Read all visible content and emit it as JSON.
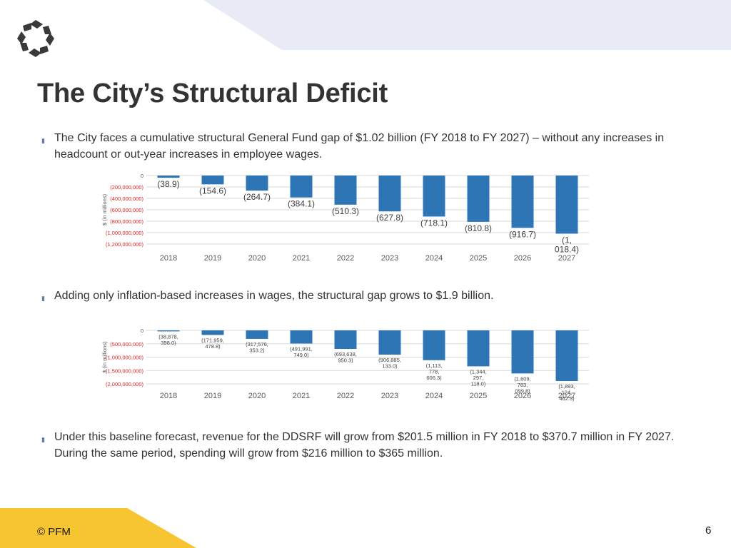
{
  "slide": {
    "title": "The City’s Structural Deficit",
    "bullets": [
      "The City faces a cumulative structural General Fund gap of $1.02 billion (FY 2018 to FY 2027) – without any increases in headcount or out-year increases in employee wages.",
      "Adding only inflation-based increases in wages, the structural gap grows to $1.9 billion.",
      "Under this baseline forecast, revenue for the DDSRF will grow from $201.5 million in FY 2018 to $370.7 million in FY 2027.  During the same period, spending will grow from $216 million to $365 million."
    ],
    "footer": "© PFM",
    "page_number": "6"
  },
  "colors": {
    "bar": "#2e75b6",
    "axis_negative_label": "#e02020",
    "top_band": "#e8ebf6",
    "footer_band": "#f7c531"
  },
  "icons": {
    "logo": "pfm-logo-icon",
    "bullet": "bullet-square-icon"
  },
  "chart_data": [
    {
      "type": "bar",
      "categories": [
        "2018",
        "2019",
        "2020",
        "2021",
        "2022",
        "2023",
        "2024",
        "2025",
        "2026",
        "2027"
      ],
      "values": [
        -38900000,
        -154600000,
        -264700000,
        -384100000,
        -510300000,
        -627800000,
        -718100000,
        -810800000,
        -916700000,
        -1018400000
      ],
      "data_labels": [
        "(38.9)",
        "(154.6)",
        "(264.7)",
        "(384.1)",
        "(510.3)",
        "(627.8)",
        "(718.1)",
        "(810.8)",
        "(916.7)",
        "(1,018.4)"
      ],
      "y_ticks": [
        {
          "value": 0,
          "label": "0"
        },
        {
          "value": -200000000,
          "label": "(200,000,000)"
        },
        {
          "value": -400000000,
          "label": "(400,000,000)"
        },
        {
          "value": -600000000,
          "label": "(600,000,000)"
        },
        {
          "value": -800000000,
          "label": "(800,000,000)"
        },
        {
          "value": -1000000000,
          "label": "(1,000,000,000)"
        },
        {
          "value": -1200000000,
          "label": "(1,200,000,000)"
        }
      ],
      "ylim": [
        -1200000000,
        0
      ],
      "ylabel": "$ (in millions)",
      "xlabel": "",
      "grid": true,
      "legend": "none"
    },
    {
      "type": "bar",
      "categories": [
        "2018",
        "2019",
        "2020",
        "2021",
        "2022",
        "2023",
        "2024",
        "2025",
        "2026",
        "2027"
      ],
      "values": [
        -38878398,
        -171959478.8,
        -317576353.2,
        -491991749,
        -693638950.3,
        -906885133,
        -1113778606.3,
        -1344297118,
        -1609783099.8,
        -1893124462.3
      ],
      "data_labels": [
        "(38,878,398.0)",
        "(171,959,478.8)",
        "(317,576,353.2)",
        "(491,991,749.0)",
        "(693,638,950.3)",
        "(906,885,133.0)",
        "(1,113,778,606.3)",
        "(1,344,297,118.0)",
        "(1,609,783,099.8)",
        "(1,893,124,462.3)"
      ],
      "y_ticks": [
        {
          "value": 0,
          "label": "0"
        },
        {
          "value": -500000000,
          "label": "(500,000,000)"
        },
        {
          "value": -1000000000,
          "label": "(1,000,000,000)"
        },
        {
          "value": -1500000000,
          "label": "(1,500,000,000)"
        },
        {
          "value": -2000000000,
          "label": "(2,000,000,000)"
        }
      ],
      "ylim": [
        -2000000000,
        0
      ],
      "ylabel": "$ (in millions)",
      "xlabel": "",
      "grid": true,
      "legend": "none"
    }
  ]
}
